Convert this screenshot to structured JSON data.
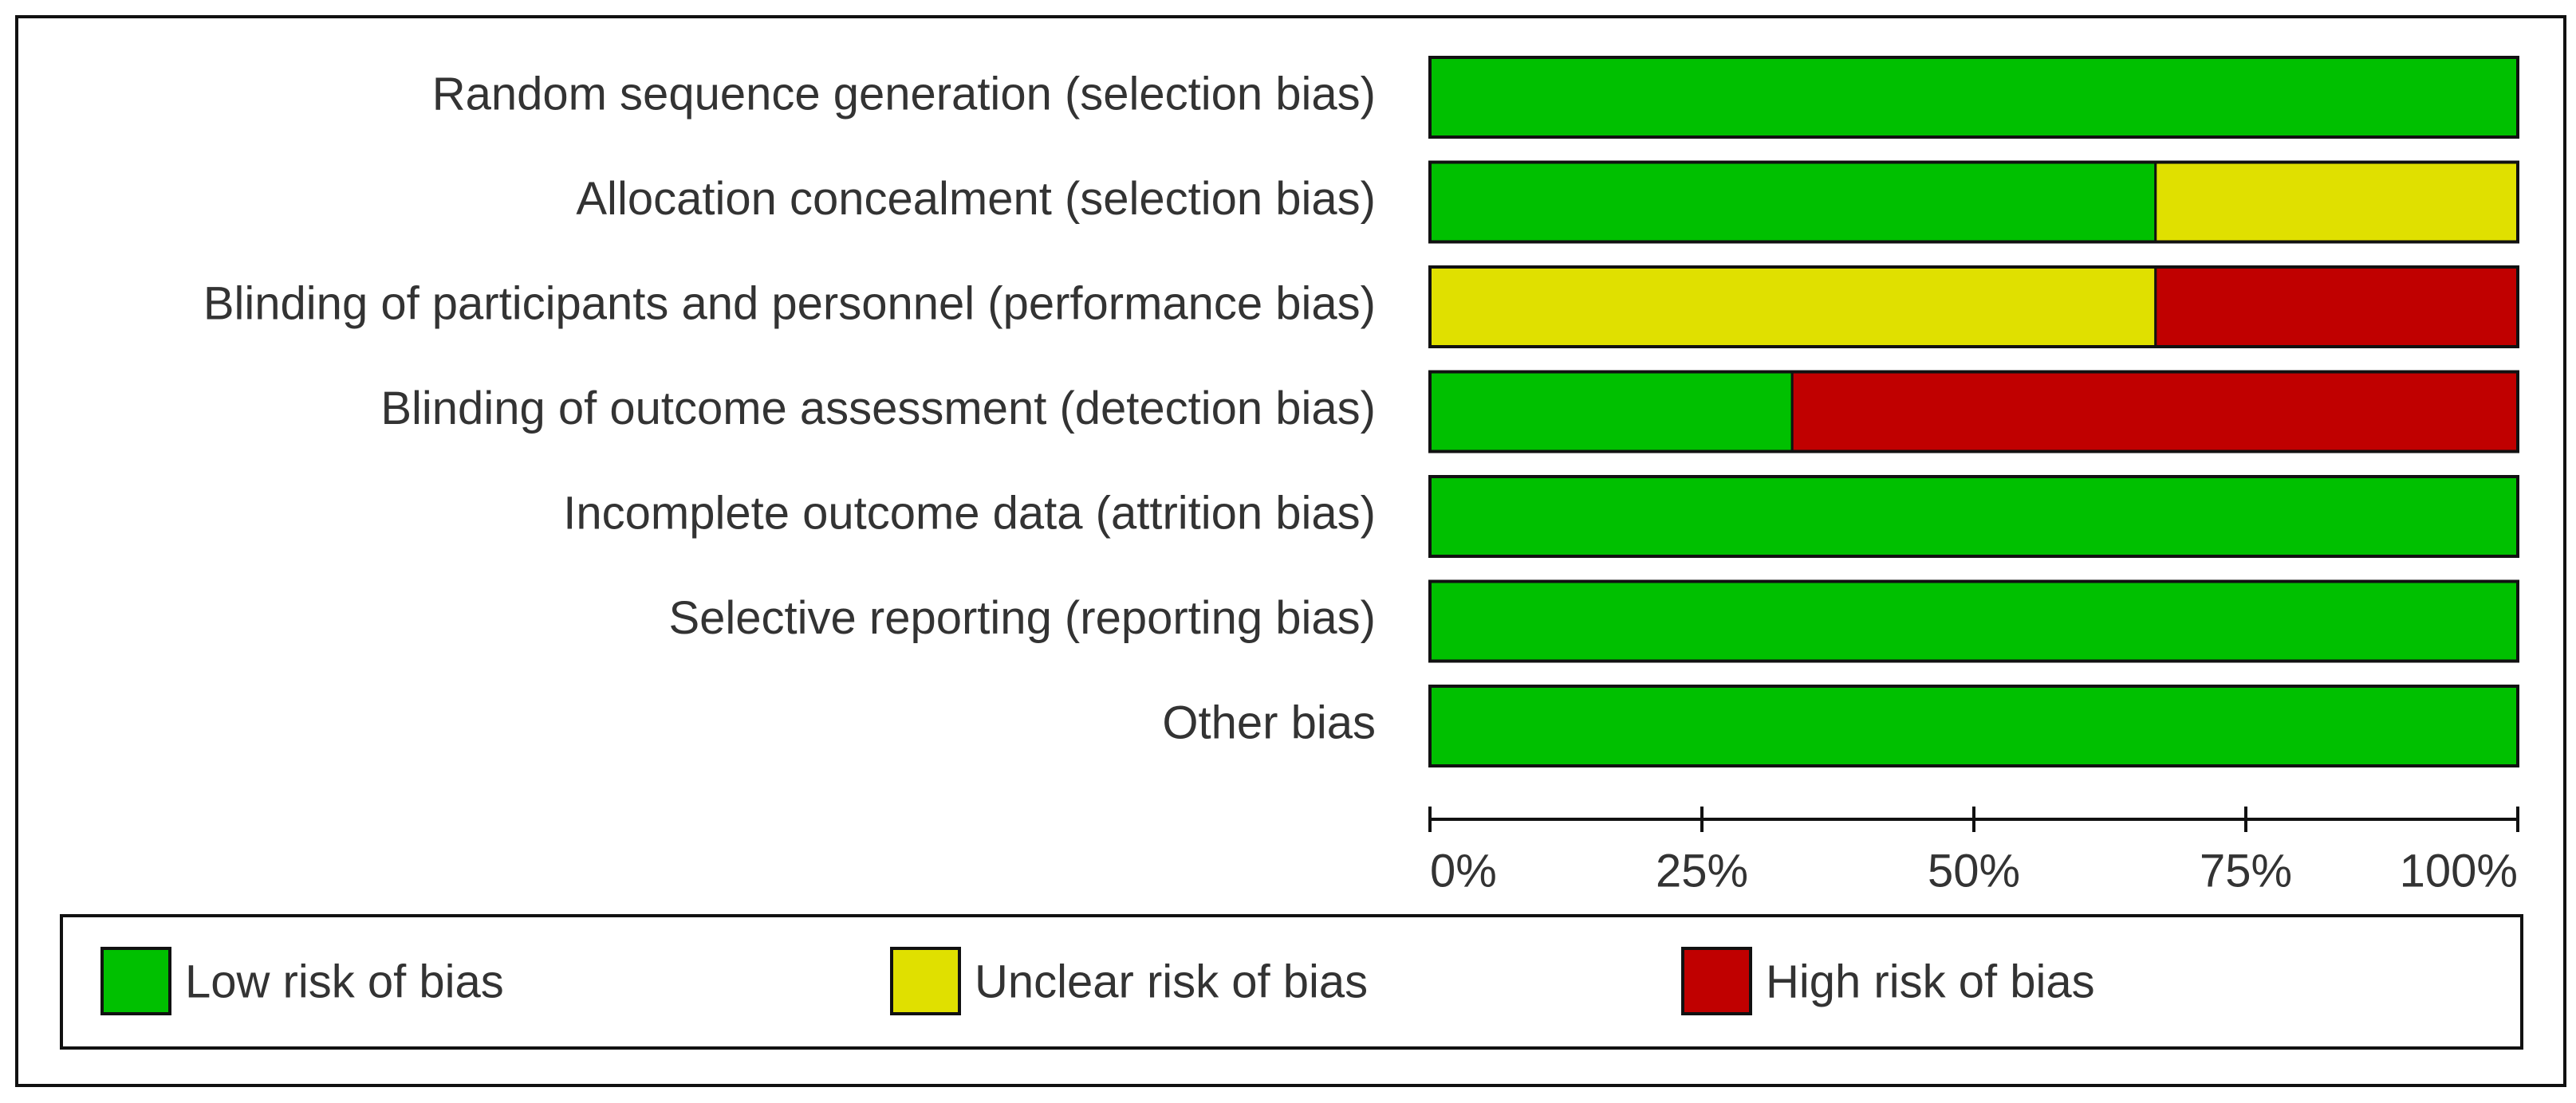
{
  "chart_data": {
    "type": "stacked-barh",
    "categories": [
      "Random sequence generation (selection bias)",
      "Allocation concealment (selection bias)",
      "Blinding of participants and personnel (performance bias)",
      "Blinding of outcome assessment (detection bias)",
      "Incomplete outcome data (attrition bias)",
      "Selective reporting (reporting bias)",
      "Other bias"
    ],
    "series": [
      {
        "name": "Low risk of bias",
        "color": "#00c000",
        "values": [
          100,
          66.7,
          0,
          33.3,
          100,
          100,
          100
        ]
      },
      {
        "name": "Unclear risk of bias",
        "color": "#e0e000",
        "values": [
          0,
          33.3,
          66.7,
          0,
          0,
          0,
          0
        ]
      },
      {
        "name": "High risk of bias",
        "color": "#c00000",
        "values": [
          0,
          0,
          33.3,
          66.7,
          0,
          0,
          0
        ]
      }
    ],
    "xlim": [
      0,
      100
    ],
    "xticks": [
      {
        "value": 0,
        "label": "0%"
      },
      {
        "value": 25,
        "label": "25%"
      },
      {
        "value": 50,
        "label": "50%"
      },
      {
        "value": 75,
        "label": "75%"
      },
      {
        "value": 100,
        "label": "100%"
      }
    ]
  }
}
